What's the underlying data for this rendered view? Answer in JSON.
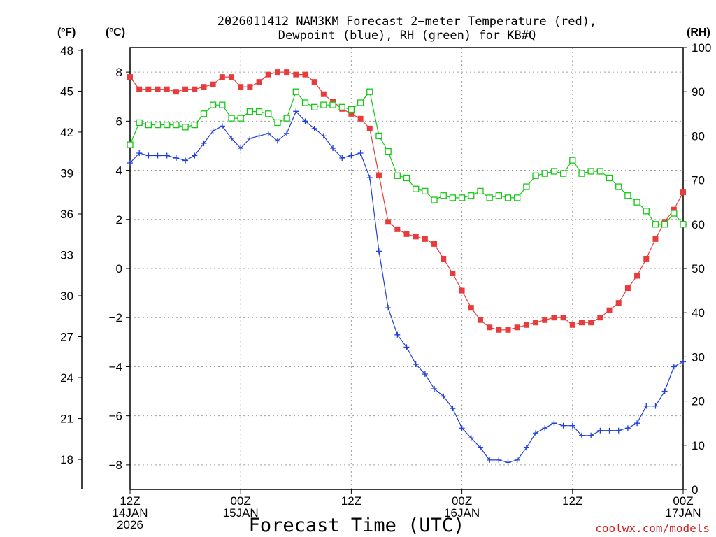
{
  "chart_data": {
    "type": "line",
    "title_line1": "2026011412 NAM3KM Forecast 2−meter Temperature (red),",
    "title_line2": "Dewpoint (blue), RH (green) for KB#Q",
    "xlabel": "Forecast Time (UTC)",
    "credit": "coolwx.com/models",
    "units": {
      "f": "(ºF)",
      "c": "(ºC)",
      "rh": "(RH)"
    },
    "x_hours_range": [
      0,
      60
    ],
    "x_ticks": [
      {
        "hour": 0,
        "l1": "12Z",
        "l2": "14JAN",
        "l3": "2026"
      },
      {
        "hour": 12,
        "l1": "00Z",
        "l2": "15JAN",
        "l3": ""
      },
      {
        "hour": 24,
        "l1": "12Z",
        "l2": "",
        "l3": ""
      },
      {
        "hour": 36,
        "l1": "00Z",
        "l2": "16JAN",
        "l3": ""
      },
      {
        "hour": 48,
        "l1": "12Z",
        "l2": "",
        "l3": ""
      },
      {
        "hour": 60,
        "l1": "00Z",
        "l2": "17JAN",
        "l3": ""
      }
    ],
    "ylim_c": [
      -9,
      9
    ],
    "y_ticks_c": [
      "8",
      "6",
      "4",
      "2",
      "0",
      "−2",
      "−4",
      "−6",
      "−8"
    ],
    "ylim_f": [
      15.8,
      48.2
    ],
    "y_ticks_f": [
      "48",
      "45",
      "42",
      "39",
      "36",
      "33",
      "30",
      "27",
      "24",
      "21",
      "18"
    ],
    "ylim_rh": [
      0,
      100
    ],
    "y_ticks_rh": [
      "100",
      "90",
      "80",
      "70",
      "60",
      "50",
      "40",
      "30",
      "20",
      "10",
      "0"
    ],
    "colors": {
      "temp": "#e83c3c",
      "dewpoint": "#1f3fd8",
      "rh": "#14c814",
      "grid": "#a0a0a0"
    },
    "series": [
      {
        "name": "Temperature (°C)",
        "axis": "c",
        "color": "#e83c3c",
        "marker": "filled-square",
        "values": [
          7.8,
          7.3,
          7.3,
          7.3,
          7.3,
          7.2,
          7.3,
          7.3,
          7.4,
          7.5,
          7.8,
          7.8,
          7.4,
          7.4,
          7.6,
          7.9,
          8.0,
          8.0,
          7.9,
          7.9,
          7.6,
          7.1,
          6.8,
          6.5,
          6.3,
          6.1,
          5.7,
          3.8,
          1.9,
          1.6,
          1.4,
          1.3,
          1.2,
          1.0,
          0.4,
          -0.2,
          -0.9,
          -1.6,
          -2.1,
          -2.4,
          -2.5,
          -2.5,
          -2.4,
          -2.3,
          -2.2,
          -2.1,
          -2.0,
          -2.0,
          -2.3,
          -2.2,
          -2.2,
          -2.0,
          -1.7,
          -1.4,
          -0.8,
          -0.3,
          0.4,
          1.2,
          1.9,
          2.4,
          3.1
        ]
      },
      {
        "name": "Dewpoint (°C)",
        "axis": "c",
        "color": "#1f3fd8",
        "marker": "plus",
        "values": [
          4.3,
          4.7,
          4.6,
          4.6,
          4.6,
          4.5,
          4.4,
          4.6,
          5.1,
          5.6,
          5.8,
          5.3,
          4.9,
          5.3,
          5.4,
          5.5,
          5.2,
          5.5,
          6.4,
          6.0,
          5.7,
          5.4,
          4.9,
          4.5,
          4.6,
          4.7,
          3.7,
          0.7,
          -1.6,
          -2.7,
          -3.2,
          -3.9,
          -4.3,
          -4.9,
          -5.2,
          -5.7,
          -6.5,
          -6.9,
          -7.3,
          -7.8,
          -7.8,
          -7.9,
          -7.8,
          -7.3,
          -6.7,
          -6.5,
          -6.3,
          -6.4,
          -6.4,
          -6.8,
          -6.8,
          -6.6,
          -6.6,
          -6.6,
          -6.5,
          -6.3,
          -5.6,
          -5.6,
          -5.0,
          -4.0,
          -3.8
        ]
      },
      {
        "name": "RH (%)",
        "axis": "rh",
        "color": "#14c814",
        "marker": "open-square",
        "values": [
          78,
          83,
          82.5,
          82.5,
          82.5,
          82.5,
          82,
          82.5,
          85,
          87,
          87,
          84,
          84,
          85.5,
          85.5,
          85,
          83,
          84,
          90,
          87.5,
          86.5,
          87,
          87,
          86.5,
          86,
          87.5,
          90,
          80,
          76.5,
          71,
          70.5,
          68,
          67.5,
          65.5,
          66.5,
          66,
          66,
          66.5,
          67.5,
          66,
          66.5,
          66,
          66,
          68.5,
          71,
          71.5,
          72,
          71.5,
          74.5,
          71.5,
          72,
          72,
          70.5,
          68.5,
          66.5,
          65,
          63,
          60,
          60,
          62.5,
          60
        ]
      }
    ]
  }
}
